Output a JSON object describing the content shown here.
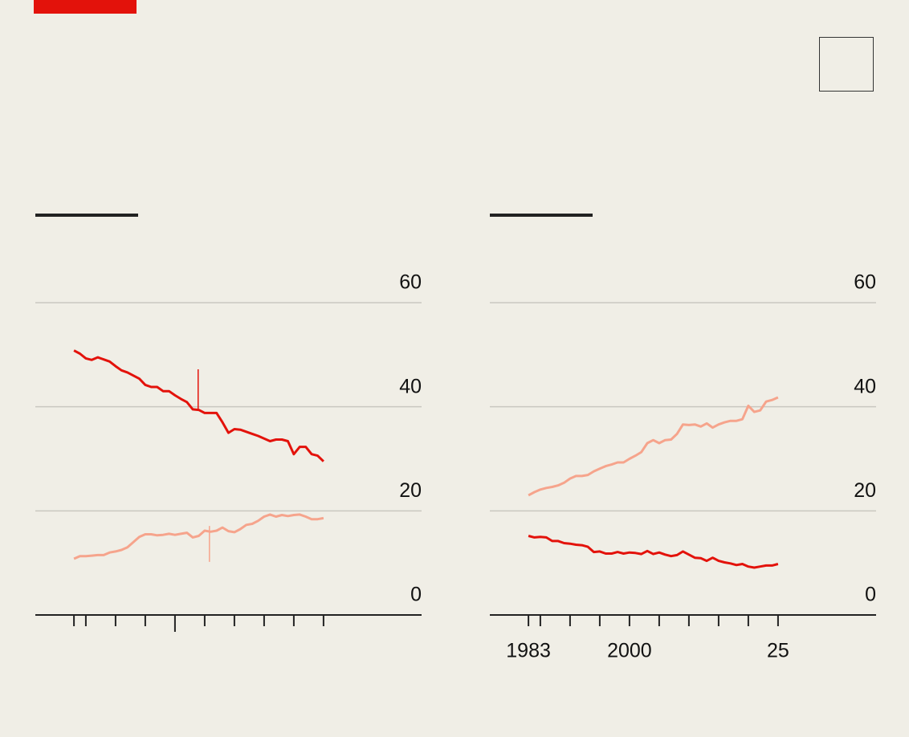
{
  "chart_data": [
    {
      "type": "line",
      "x": [
        1983,
        1984,
        1985,
        1986,
        1987,
        1988,
        1989,
        1990,
        1991,
        1992,
        1993,
        1994,
        1995,
        1996,
        1997,
        1998,
        1999,
        2000,
        2001,
        2002,
        2003,
        2004,
        2005,
        2006,
        2007,
        2008,
        2009,
        2010,
        2011,
        2012,
        2013,
        2014,
        2015,
        2016,
        2017,
        2018,
        2019,
        2020,
        2021,
        2022,
        2023,
        2024,
        2025
      ],
      "series": [
        {
          "color": "#e3120b",
          "values": [
            50.8,
            50.2,
            49.3,
            49.0,
            49.5,
            49.1,
            48.7,
            47.8,
            47.0,
            46.6,
            46.0,
            45.4,
            44.2,
            43.8,
            43.8,
            43.0,
            43.0,
            42.2,
            41.5,
            40.9,
            39.5,
            39.4,
            38.8,
            38.8,
            38.8,
            37.0,
            35.0,
            35.7,
            35.6,
            35.2,
            34.8,
            34.4,
            33.9,
            33.4,
            33.7,
            33.7,
            33.4,
            30.9,
            32.3,
            32.3,
            30.9,
            30.6,
            29.5
          ]
        },
        {
          "color": "#f6a48c",
          "values": [
            10.8,
            11.3,
            11.3,
            11.4,
            11.5,
            11.5,
            12.0,
            12.2,
            12.5,
            13.0,
            14.0,
            15.0,
            15.5,
            15.5,
            15.3,
            15.4,
            15.6,
            15.4,
            15.6,
            15.8,
            14.9,
            15.2,
            16.2,
            16.0,
            16.2,
            16.8,
            16.1,
            15.9,
            16.5,
            17.3,
            17.5,
            18.1,
            18.9,
            19.3,
            18.9,
            19.2,
            19.0,
            19.2,
            19.3,
            18.9,
            18.4,
            18.4,
            18.6
          ]
        }
      ],
      "markers": [
        {
          "x": 2003.9,
          "y": [
            39.5,
            47.2
          ],
          "color": "#e3120b"
        },
        {
          "x": 2005.8,
          "y": [
            10.2,
            17.1
          ],
          "color": "#f6a48c"
        }
      ],
      "xlim": [
        1976.5,
        2041.5
      ],
      "xtick_marks": [
        1983,
        1985,
        1990,
        1995,
        2000,
        2005,
        2010,
        2015,
        2020,
        2025
      ],
      "xmajor_ticks": [
        2000
      ],
      "ylim": [
        0,
        60
      ],
      "yticks": [
        0,
        20,
        40,
        60
      ],
      "grid": true
    },
    {
      "type": "line",
      "x": [
        1983,
        1984,
        1985,
        1986,
        1987,
        1988,
        1989,
        1990,
        1991,
        1992,
        1993,
        1994,
        1995,
        1996,
        1997,
        1998,
        1999,
        2000,
        2001,
        2002,
        2003,
        2004,
        2005,
        2006,
        2007,
        2008,
        2009,
        2010,
        2011,
        2012,
        2013,
        2014,
        2015,
        2016,
        2017,
        2018,
        2019,
        2020,
        2021,
        2022,
        2023,
        2024,
        2025
      ],
      "series": [
        {
          "color": "#f6a48c",
          "values": [
            23.0,
            23.6,
            24.1,
            24.4,
            24.6,
            24.9,
            25.4,
            26.2,
            26.7,
            26.7,
            26.9,
            27.6,
            28.1,
            28.6,
            28.9,
            29.3,
            29.3,
            30.0,
            30.6,
            31.3,
            33.0,
            33.6,
            33.0,
            33.6,
            33.7,
            34.8,
            36.6,
            36.5,
            36.6,
            36.2,
            36.8,
            36.0,
            36.6,
            37.0,
            37.3,
            37.3,
            37.6,
            40.2,
            39.0,
            39.3,
            41.0,
            41.3,
            41.8
          ]
        },
        {
          "color": "#e3120b",
          "values": [
            15.2,
            14.9,
            15.0,
            14.9,
            14.2,
            14.2,
            13.8,
            13.7,
            13.5,
            13.4,
            13.1,
            12.1,
            12.2,
            11.8,
            11.8,
            12.1,
            11.8,
            12.0,
            11.9,
            11.7,
            12.3,
            11.7,
            12.0,
            11.6,
            11.3,
            11.5,
            12.2,
            11.6,
            11.0,
            10.9,
            10.4,
            11.0,
            10.4,
            10.1,
            9.9,
            9.6,
            9.8,
            9.3,
            9.1,
            9.3,
            9.5,
            9.5,
            9.8
          ]
        }
      ],
      "xlim": [
        1976.5,
        2041.5
      ],
      "xticks": [
        1983,
        2000,
        {
          "value": 2025,
          "label": "25"
        }
      ],
      "xtick_marks": [
        1985,
        1990,
        1995,
        2005,
        2010,
        2015,
        2020
      ],
      "ylim": [
        0,
        60
      ],
      "yticks": [
        0,
        20,
        40,
        60
      ],
      "grid": true
    }
  ]
}
